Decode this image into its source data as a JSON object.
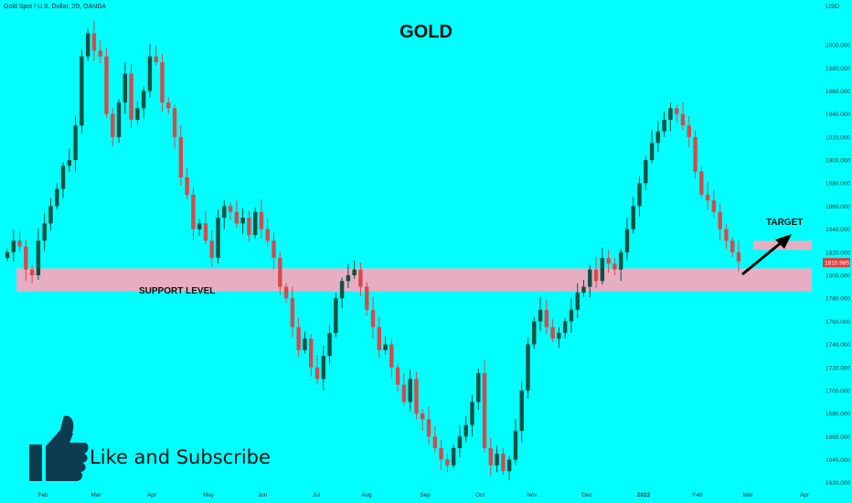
{
  "header": {
    "symbol": "Gold Spot / U.S. Dollar, 2D, OANDA",
    "currency": "USD"
  },
  "annotations": {
    "title": "GOLD",
    "support_label": "SUPPORT LEVEL",
    "target_label": "TARGET",
    "cta": "Like and Subscribe",
    "current_price": "1810.985"
  },
  "colors": {
    "background": "#00ffff",
    "up_candle": "#0f5040",
    "down_candle": "#d64a4a",
    "zone": "#e7aec3",
    "price_badge": "#e03c3c"
  },
  "icons": {
    "thumb": "thumbs-up-icon",
    "arrow": "arrow-up-right-icon"
  },
  "chart_data": {
    "type": "candlestick",
    "title": "GOLD",
    "x_ticks": [
      "Feb",
      "Mar",
      "Apr",
      "May",
      "Jun",
      "Jul",
      "Aug",
      "Sep",
      "Oct",
      "Nov",
      "Dec",
      "2023",
      "Feb",
      "Mar",
      "Apr"
    ],
    "y_ticks": [
      1620,
      1640,
      1660,
      1680,
      1700,
      1720,
      1740,
      1760,
      1780,
      1800,
      1820,
      1840,
      1860,
      1880,
      1900,
      1920,
      1940,
      1960,
      1980,
      2000
    ],
    "ylim": [
      1615,
      2035
    ],
    "support_zone": [
      1786,
      1806
    ],
    "target_zone": [
      1822,
      1830
    ],
    "last_price": 1810.985,
    "close_series": [
      1820,
      1830,
      1825,
      1805,
      1800,
      1830,
      1845,
      1860,
      1875,
      1895,
      1900,
      1930,
      1990,
      2010,
      1995,
      1990,
      1940,
      1920,
      1950,
      1975,
      1935,
      1945,
      1960,
      1990,
      1985,
      1950,
      1945,
      1920,
      1885,
      1870,
      1840,
      1845,
      1830,
      1815,
      1850,
      1860,
      1855,
      1845,
      1850,
      1835,
      1855,
      1840,
      1830,
      1815,
      1790,
      1780,
      1755,
      1735,
      1745,
      1720,
      1710,
      1730,
      1750,
      1780,
      1795,
      1800,
      1805,
      1790,
      1770,
      1755,
      1735,
      1740,
      1720,
      1705,
      1690,
      1710,
      1680,
      1675,
      1660,
      1650,
      1640,
      1635,
      1650,
      1660,
      1670,
      1690,
      1715,
      1650,
      1635,
      1645,
      1630,
      1640,
      1665,
      1700,
      1740,
      1760,
      1770,
      1755,
      1745,
      1750,
      1760,
      1770,
      1785,
      1790,
      1805,
      1795,
      1815,
      1810,
      1805,
      1820,
      1840,
      1860,
      1880,
      1900,
      1915,
      1925,
      1935,
      1945,
      1940,
      1930,
      1920,
      1890,
      1870,
      1865,
      1855,
      1840,
      1830,
      1820,
      1812
    ]
  }
}
